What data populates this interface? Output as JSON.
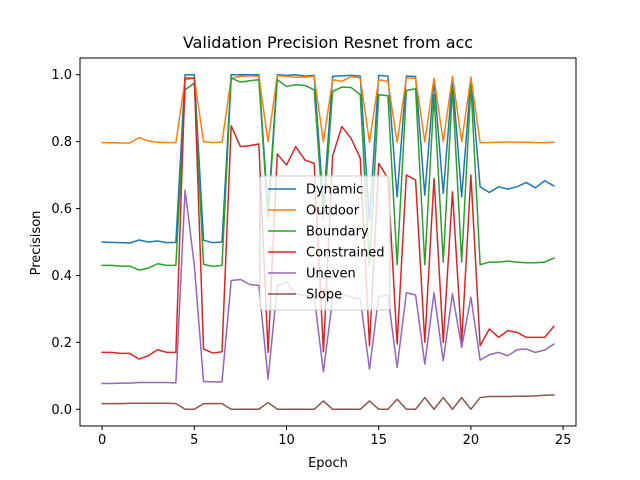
{
  "chart_data": {
    "type": "line",
    "title": "Validation Precision Resnet from acc",
    "xlabel": "Epoch",
    "ylabel": "Precisison",
    "xlim": [
      -1.2,
      25.7
    ],
    "ylim": [
      -0.05,
      1.05
    ],
    "xticks": [
      0,
      5,
      10,
      15,
      20,
      25
    ],
    "yticks": [
      0.0,
      0.2,
      0.4,
      0.6,
      0.8,
      1.0
    ],
    "xtick_labels": [
      "0",
      "5",
      "10",
      "15",
      "20",
      "25"
    ],
    "ytick_labels": [
      "0.0",
      "0.2",
      "0.4",
      "0.6",
      "0.8",
      "1.0"
    ],
    "grid": false,
    "legend_position": "center",
    "x": [
      0,
      0.5,
      1,
      1.5,
      2,
      2.5,
      3,
      3.5,
      4,
      4.5,
      5,
      5.5,
      6,
      6.5,
      7,
      7.5,
      8,
      8.5,
      9,
      9.5,
      10,
      10.5,
      11,
      11.5,
      12,
      12.5,
      13,
      13.5,
      14,
      14.5,
      15,
      15.5,
      16,
      16.5,
      17,
      17.5,
      18,
      18.5,
      19,
      19.5,
      20,
      20.5,
      21,
      21.5,
      22,
      22.5,
      23,
      23.5,
      24,
      24.5
    ],
    "series": [
      {
        "name": "Dynamic",
        "color": "#1f77b4",
        "values": [
          0.5,
          0.499,
          0.498,
          0.497,
          0.506,
          0.5,
          0.503,
          0.498,
          0.499,
          1.0,
          1.0,
          0.505,
          0.498,
          0.5,
          1.0,
          1.0,
          1.0,
          1.0,
          0.59,
          1.0,
          0.998,
          1.0,
          0.996,
          0.998,
          0.61,
          0.995,
          0.997,
          0.998,
          0.996,
          0.56,
          0.998,
          0.996,
          0.635,
          0.996,
          0.995,
          0.64,
          0.985,
          0.645,
          0.99,
          0.635,
          0.99,
          0.665,
          0.648,
          0.665,
          0.658,
          0.665,
          0.678,
          0.662,
          0.683,
          0.668
        ]
      },
      {
        "name": "Outdoor",
        "color": "#ff7f0e",
        "values": [
          0.797,
          0.797,
          0.796,
          0.796,
          0.812,
          0.802,
          0.798,
          0.797,
          0.797,
          0.985,
          0.99,
          0.8,
          0.797,
          0.798,
          0.99,
          0.995,
          0.997,
          0.995,
          0.8,
          0.997,
          0.995,
          0.993,
          0.993,
          0.995,
          0.8,
          0.985,
          0.98,
          0.995,
          0.99,
          0.798,
          0.985,
          0.98,
          0.798,
          0.99,
          0.99,
          0.8,
          0.99,
          0.8,
          0.995,
          0.8,
          0.993,
          0.797,
          0.797,
          0.798,
          0.799,
          0.798,
          0.798,
          0.797,
          0.797,
          0.798
        ]
      },
      {
        "name": "Boundary",
        "color": "#2ca02c",
        "values": [
          0.43,
          0.43,
          0.428,
          0.428,
          0.416,
          0.422,
          0.435,
          0.43,
          0.43,
          0.955,
          0.975,
          0.433,
          0.427,
          0.43,
          0.99,
          0.978,
          0.982,
          0.985,
          0.57,
          0.985,
          0.965,
          0.97,
          0.968,
          0.955,
          0.57,
          0.95,
          0.963,
          0.962,
          0.94,
          0.43,
          0.94,
          0.937,
          0.432,
          0.953,
          0.958,
          0.432,
          0.94,
          0.44,
          0.96,
          0.44,
          0.97,
          0.432,
          0.44,
          0.44,
          0.443,
          0.44,
          0.438,
          0.438,
          0.44,
          0.452
        ]
      },
      {
        "name": "Constrained",
        "color": "#d62728",
        "values": [
          0.17,
          0.17,
          0.167,
          0.167,
          0.15,
          0.16,
          0.178,
          0.17,
          0.17,
          0.99,
          0.99,
          0.18,
          0.168,
          0.172,
          0.847,
          0.785,
          0.788,
          0.793,
          0.17,
          0.763,
          0.73,
          0.785,
          0.745,
          0.735,
          0.172,
          0.757,
          0.845,
          0.81,
          0.75,
          0.19,
          0.735,
          0.69,
          0.195,
          0.7,
          0.685,
          0.2,
          0.69,
          0.2,
          0.65,
          0.2,
          0.7,
          0.19,
          0.24,
          0.215,
          0.235,
          0.23,
          0.215,
          0.215,
          0.215,
          0.248
        ]
      },
      {
        "name": "Uneven",
        "color": "#9467bd",
        "values": [
          0.077,
          0.077,
          0.078,
          0.078,
          0.08,
          0.08,
          0.08,
          0.08,
          0.079,
          0.655,
          0.43,
          0.083,
          0.082,
          0.082,
          0.385,
          0.388,
          0.373,
          0.37,
          0.09,
          0.37,
          0.38,
          0.345,
          0.34,
          0.338,
          0.112,
          0.33,
          0.345,
          0.335,
          0.33,
          0.12,
          0.337,
          0.34,
          0.125,
          0.348,
          0.342,
          0.135,
          0.348,
          0.145,
          0.345,
          0.185,
          0.335,
          0.147,
          0.163,
          0.17,
          0.16,
          0.178,
          0.18,
          0.17,
          0.177,
          0.195
        ]
      },
      {
        "name": "Slope",
        "color": "#8c564b",
        "values": [
          0.017,
          0.017,
          0.017,
          0.018,
          0.018,
          0.018,
          0.018,
          0.018,
          0.017,
          0.0,
          0.0,
          0.017,
          0.017,
          0.017,
          0.0,
          0.0,
          0.0,
          0.0,
          0.02,
          0.0,
          0.0,
          0.0,
          0.0,
          0.0,
          0.025,
          0.0,
          0.0,
          0.0,
          0.0,
          0.025,
          0.0,
          0.0,
          0.03,
          0.0,
          0.0,
          0.035,
          0.0,
          0.035,
          0.0,
          0.035,
          0.0,
          0.035,
          0.038,
          0.038,
          0.038,
          0.039,
          0.039,
          0.04,
          0.042,
          0.043
        ]
      }
    ]
  }
}
